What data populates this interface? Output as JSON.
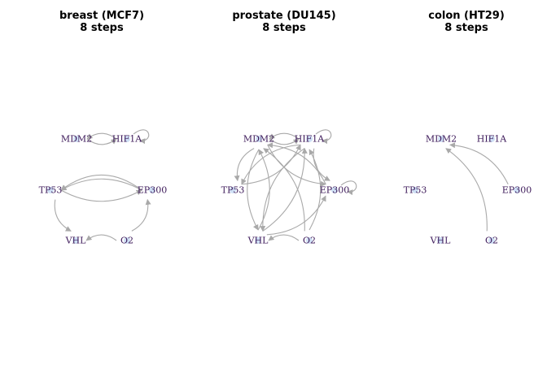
{
  "nodes": [
    "MDM2",
    "HIF1A",
    "TP53",
    "EP300",
    "VHL",
    "O2"
  ],
  "colors": {
    "edge": "#a9a9a9",
    "label": "#3d1a5a",
    "node": "#cfe0f5"
  },
  "panels": [
    {
      "title": "breast (MCF7)",
      "subtitle": "8 steps",
      "edges": [
        [
          "HIF1A",
          "MDM2"
        ],
        [
          "MDM2",
          "HIF1A"
        ],
        [
          "HIF1A",
          "HIF1A"
        ],
        [
          "TP53",
          "EP300"
        ],
        [
          "EP300",
          "TP53"
        ],
        [
          "EP300",
          "TP53"
        ],
        [
          "TP53",
          "VHL"
        ],
        [
          "O2",
          "VHL"
        ],
        [
          "O2",
          "EP300"
        ]
      ]
    },
    {
      "title": "prostate (DU145)",
      "subtitle": "8 steps",
      "edges": [
        [
          "MDM2",
          "HIF1A"
        ],
        [
          "HIF1A",
          "MDM2"
        ],
        [
          "HIF1A",
          "HIF1A"
        ],
        [
          "MDM2",
          "TP53"
        ],
        [
          "HIF1A",
          "TP53"
        ],
        [
          "MDM2",
          "EP300"
        ],
        [
          "HIF1A",
          "EP300"
        ],
        [
          "EP300",
          "EP300"
        ],
        [
          "MDM2",
          "VHL"
        ],
        [
          "VHL",
          "MDM2"
        ],
        [
          "HIF1A",
          "VHL"
        ],
        [
          "VHL",
          "HIF1A"
        ],
        [
          "O2",
          "MDM2"
        ],
        [
          "O2",
          "HIF1A"
        ],
        [
          "O2",
          "VHL"
        ],
        [
          "VHL",
          "EP300"
        ],
        [
          "EP300",
          "MDM2"
        ],
        [
          "TP53",
          "HIF1A"
        ]
      ]
    },
    {
      "title": "colon (HT29)",
      "subtitle": "8 steps",
      "edges": [
        [
          "EP300",
          "MDM2"
        ],
        [
          "O2",
          "MDM2"
        ]
      ]
    }
  ]
}
